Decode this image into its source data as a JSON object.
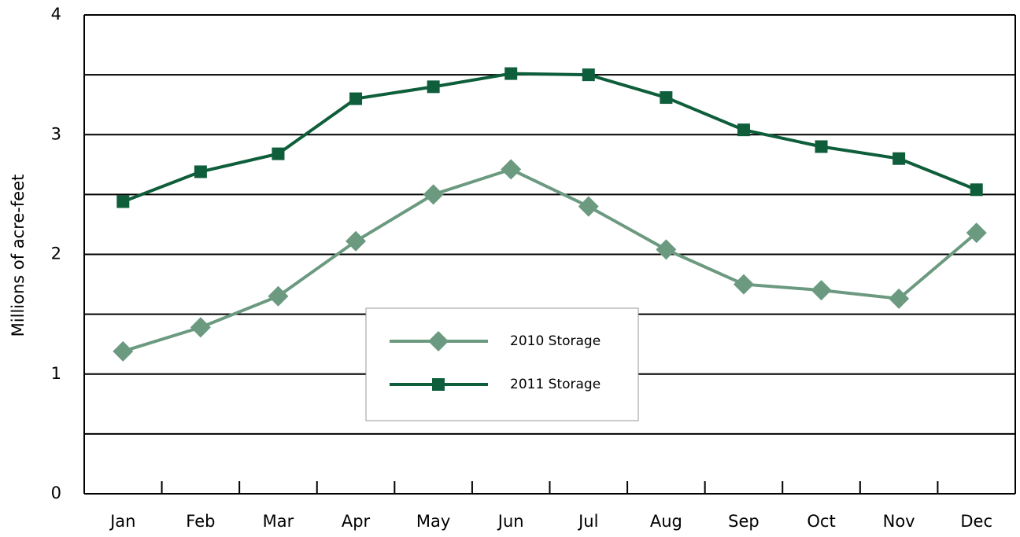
{
  "chart_data": {
    "type": "line",
    "y_label": "Millions of acre-feet",
    "categories": [
      "Jan",
      "Feb",
      "Mar",
      "Apr",
      "May",
      "Jun",
      "Jul",
      "Aug",
      "Sep",
      "Oct",
      "Nov",
      "Dec"
    ],
    "series": [
      {
        "name": "2010 Storage",
        "color": "#6b9a80",
        "marker": "diamond",
        "values": [
          1.19,
          1.39,
          1.65,
          2.11,
          2.5,
          2.71,
          2.4,
          2.04,
          1.75,
          1.7,
          1.63,
          2.18
        ]
      },
      {
        "name": "2011 Storage",
        "color": "#0e5e3b",
        "marker": "square",
        "values": [
          2.44,
          2.69,
          2.84,
          3.3,
          3.4,
          3.51,
          3.5,
          3.31,
          3.04,
          2.9,
          2.8,
          2.54
        ]
      }
    ],
    "ylim": [
      0,
      4
    ],
    "yticks": [
      0,
      1,
      2,
      3,
      4
    ],
    "minor_yticks": [
      0.5,
      1.5,
      2.5,
      3.5
    ],
    "grid": true
  }
}
